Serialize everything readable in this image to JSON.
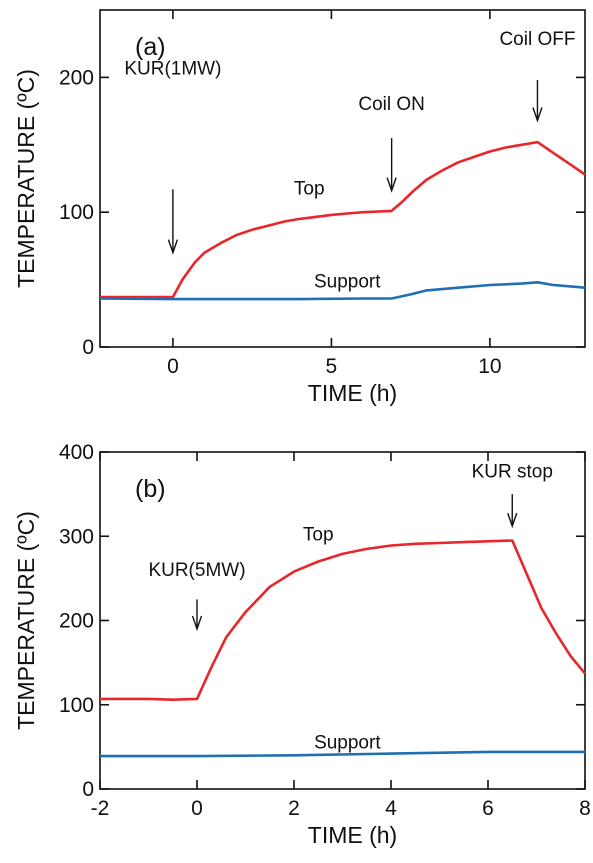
{
  "chart_data": [
    {
      "type": "line",
      "panel_label": "(a)",
      "xlabel": "TIME (h)",
      "ylabel": "TEMPERATURE (ºC)",
      "xlim": [
        -2.3,
        13
      ],
      "ylim": [
        0,
        250
      ],
      "xticks": [
        0,
        5,
        10
      ],
      "yticks": [
        0,
        100,
        200
      ],
      "series": [
        {
          "name": "Top",
          "color": "#e8262b",
          "x": [
            -2.3,
            -1,
            0,
            0.3,
            0.7,
            1,
            1.5,
            2,
            2.5,
            3,
            3.5,
            4,
            4.5,
            5,
            5.5,
            6,
            6.5,
            6.9,
            7.2,
            7.6,
            8,
            8.5,
            9,
            9.5,
            10,
            10.5,
            11,
            11.5,
            12,
            12.5,
            13
          ],
          "y": [
            37,
            37,
            37,
            50,
            63,
            70,
            77,
            83,
            87,
            90,
            93,
            95,
            96.5,
            98,
            99,
            100,
            100.5,
            101,
            107,
            116,
            124,
            131,
            137,
            141,
            145,
            148,
            150,
            152,
            144,
            136,
            128
          ]
        },
        {
          "name": "Support",
          "color": "#1f6fb4",
          "x": [
            -2.3,
            0,
            2,
            4,
            6,
            6.9,
            7.5,
            8,
            9,
            10,
            11,
            11.5,
            12,
            12.5,
            13
          ],
          "y": [
            36,
            35.5,
            35.5,
            35.5,
            36,
            36,
            39,
            42,
            44,
            46,
            47,
            48,
            46,
            45,
            44
          ]
        }
      ],
      "annotations": [
        {
          "text": "KUR(1MW)",
          "x": 0,
          "text_y": 202,
          "arrow_from": 117,
          "arrow_to": 70
        },
        {
          "text": "Coil ON",
          "x": 6.9,
          "text_y": 176,
          "arrow_from": 155,
          "arrow_to": 116
        },
        {
          "text": "Coil OFF",
          "x": 11.5,
          "text_y": 224,
          "arrow_from": 198,
          "arrow_to": 168
        }
      ]
    },
    {
      "type": "line",
      "panel_label": "(b)",
      "xlabel": "TIME (h)",
      "ylabel": "TEMPERATURE (ºC)",
      "xlim": [
        -2,
        8
      ],
      "ylim": [
        0,
        400
      ],
      "xticks": [
        -2,
        0,
        2,
        4,
        6,
        8
      ],
      "yticks": [
        0,
        100,
        200,
        300,
        400
      ],
      "series": [
        {
          "name": "Top",
          "color": "#e8262b",
          "x": [
            -2,
            -1,
            -0.5,
            0,
            0.3,
            0.6,
            1,
            1.5,
            2,
            2.5,
            3,
            3.5,
            4,
            4.5,
            5,
            5.5,
            6,
            6.5,
            6.8,
            7.1,
            7.4,
            7.7,
            8
          ],
          "y": [
            107,
            107,
            106,
            107,
            145,
            180,
            210,
            240,
            258,
            270,
            279,
            285,
            289,
            291,
            292,
            293,
            294,
            295,
            255,
            215,
            185,
            158,
            137
          ]
        },
        {
          "name": "Support",
          "color": "#1f6fb4",
          "x": [
            -2,
            0,
            2,
            4,
            6,
            8
          ],
          "y": [
            39,
            39,
            40,
            42,
            44,
            44
          ]
        }
      ],
      "annotations": [
        {
          "text": "KUR(5MW)",
          "x": 0,
          "text_y": 253,
          "arrow_from": 225,
          "arrow_to": 190
        },
        {
          "text": "KUR stop",
          "x": 6.5,
          "text_y": 370,
          "arrow_from": 350,
          "arrow_to": 312
        }
      ]
    }
  ]
}
